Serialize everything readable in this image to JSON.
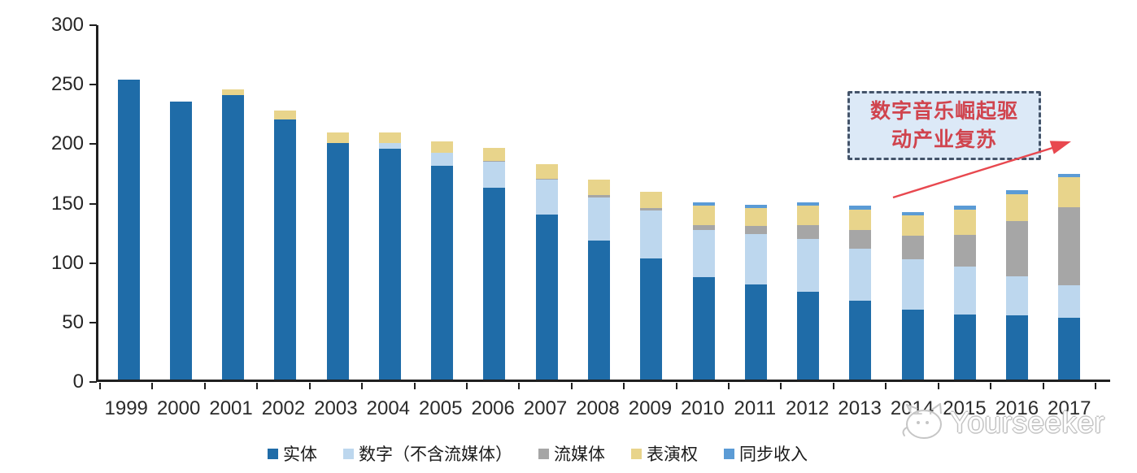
{
  "watermark": {
    "brand": "Yourseeker"
  },
  "annotation": {
    "line1": "数字音乐崛起驱",
    "line2": "动产业复苏",
    "text_color": "#D0444E",
    "box_fill": "#DCE9F7",
    "box_border": "#44546A",
    "arrow_color": "#E8484F"
  },
  "axis_colors": {
    "axis": "#1f1f1f",
    "tick_label": "#262626"
  },
  "chart_data": {
    "type": "bar",
    "stacked": true,
    "title": "",
    "xlabel": "",
    "ylabel": "",
    "ylim": [
      0,
      300
    ],
    "yticks": [
      0,
      50,
      100,
      150,
      200,
      250,
      300
    ],
    "grid": false,
    "legend_position": "bottom",
    "categories": [
      "1999",
      "2000",
      "2001",
      "2002",
      "2003",
      "2004",
      "2005",
      "2006",
      "2007",
      "2008",
      "2009",
      "2010",
      "2011",
      "2012",
      "2013",
      "2014",
      "2015",
      "2016",
      "2017"
    ],
    "series": [
      {
        "name": "实体",
        "color": "#1F6CA8",
        "values": [
          252,
          234,
          239,
          219,
          199,
          194,
          180,
          161,
          139,
          117,
          102,
          86,
          80,
          74,
          66,
          59,
          55,
          54,
          52
        ]
      },
      {
        "name": "数字（不含流媒体）",
        "color": "#BDD7EE",
        "values": [
          0,
          0,
          0,
          0,
          0,
          5,
          11,
          22,
          29,
          36,
          40,
          40,
          42,
          44,
          44,
          42,
          40,
          33,
          27
        ]
      },
      {
        "name": "流媒体",
        "color": "#A6A6A6",
        "values": [
          0,
          0,
          0,
          0,
          0,
          0,
          0,
          1,
          1,
          2,
          2,
          4,
          7,
          12,
          16,
          20,
          27,
          46,
          66
        ]
      },
      {
        "name": "表演权",
        "color": "#E8D48B",
        "values": [
          0,
          0,
          5,
          7,
          9,
          9,
          9,
          11,
          12,
          13,
          14,
          16,
          15,
          16,
          17,
          17,
          21,
          23,
          25
        ]
      },
      {
        "name": "同步收入",
        "color": "#5B9BD5",
        "values": [
          0,
          0,
          0,
          0,
          0,
          0,
          0,
          0,
          0,
          0,
          0,
          3,
          3,
          3,
          3,
          3,
          3,
          3,
          3
        ]
      }
    ]
  }
}
